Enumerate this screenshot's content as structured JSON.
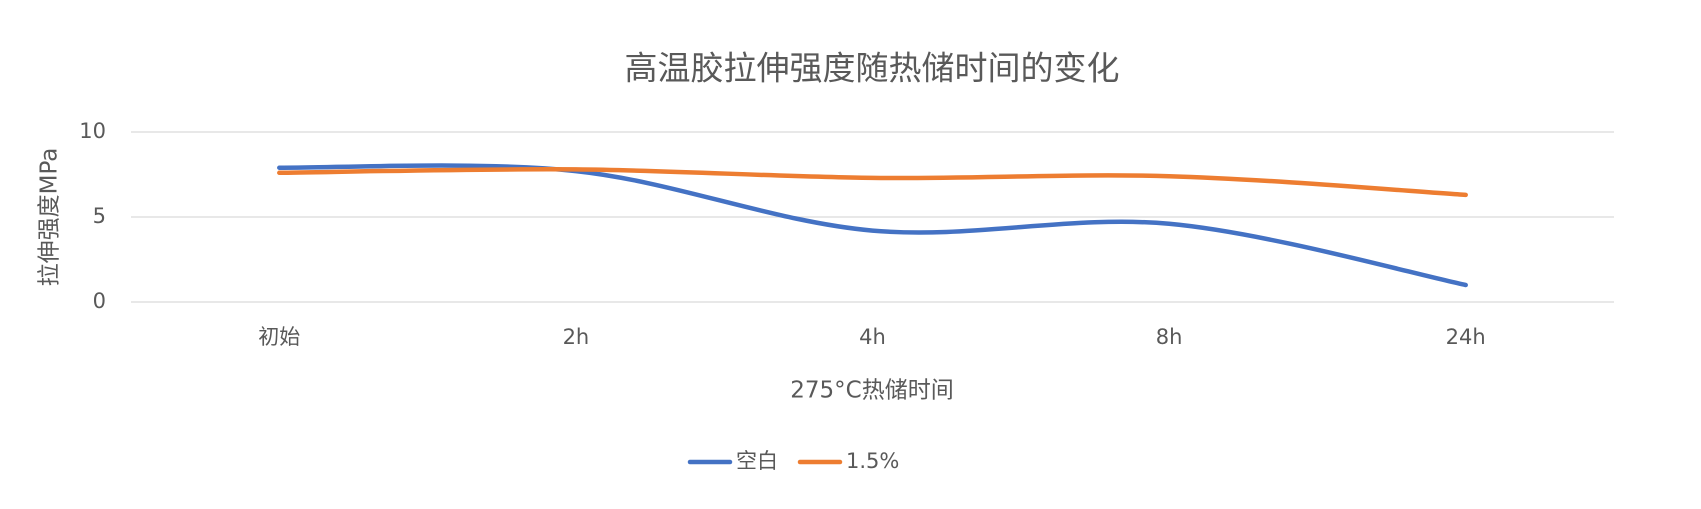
{
  "chart_data": {
    "type": "line",
    "title": "高温胶拉伸强度随热储时间的变化",
    "x_label": "275°C热储时间",
    "y_label": "拉伸强度MPa",
    "categories": [
      "初始",
      "2h",
      "4h",
      "8h",
      "24h"
    ],
    "series": [
      {
        "name": "空白",
        "color": "#4472c4",
        "values": [
          7.9,
          7.7,
          4.2,
          4.6,
          1.0
        ]
      },
      {
        "name": "1.5%",
        "color": "#ed7d31",
        "values": [
          7.6,
          7.8,
          7.3,
          7.4,
          6.3
        ]
      }
    ],
    "ylim": [
      0,
      10
    ],
    "yticks": [
      0,
      5,
      10
    ],
    "grid": true,
    "smooth": true,
    "legend": "bottom"
  }
}
